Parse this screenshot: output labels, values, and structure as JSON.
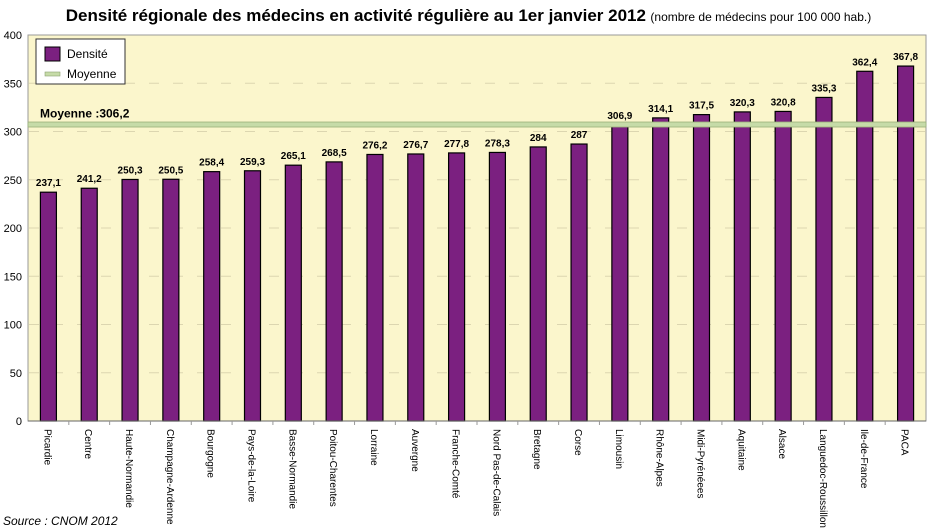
{
  "chart_data": {
    "type": "bar",
    "title": "Densité régionale des médecins en activité régulière au 1er janvier 2012",
    "subtitle": "(nombre de médecins pour 100 000 hab.)",
    "xlabel": "",
    "ylabel": "",
    "ylim": [
      0,
      400
    ],
    "yticks": [
      0,
      50,
      100,
      150,
      200,
      250,
      300,
      350,
      400
    ],
    "grid": true,
    "legend_position": "top-left",
    "categories": [
      "Picardie",
      "Centre",
      "Haute-Normandie",
      "Champagne-Ardenne",
      "Bourgogne",
      "Pays-de-la-Loire",
      "Basse-Normandie",
      "Poitou-Charentes",
      "Lorraine",
      "Auvergne",
      "Franche-Comté",
      "Nord Pas-de-Calais",
      "Bretagne",
      "Corse",
      "Limousin",
      "Rhône-Alpes",
      "Midi-Pyrénéees",
      "Aquitaine",
      "Alsace",
      "Languedoc-Roussillon",
      "Ile-de-France",
      "PACA"
    ],
    "series": [
      {
        "name": "Densité",
        "color": "#7b2080",
        "values": [
          237.1,
          241.2,
          250.3,
          250.5,
          258.4,
          259.3,
          265.1,
          268.5,
          276.2,
          276.7,
          277.8,
          278.3,
          284,
          287,
          306.9,
          314.1,
          317.5,
          320.3,
          320.8,
          335.3,
          362.4,
          367.8
        ],
        "labels": [
          "237,1",
          "241,2",
          "250,3",
          "250,5",
          "258,4",
          "259,3",
          "265,1",
          "268,5",
          "276,2",
          "276,7",
          "277,8",
          "278,3",
          "284",
          "287",
          "306,9",
          "314,1",
          "317,5",
          "320,3",
          "320,8",
          "335,3",
          "362,4",
          "367,8"
        ]
      },
      {
        "name": "Moyenne",
        "color": "#c6dba8",
        "value": 306.2,
        "label": "Moyenne :306,2"
      }
    ],
    "plot_background": "#fbf6cc",
    "source": "Source : CNOM 2012"
  }
}
